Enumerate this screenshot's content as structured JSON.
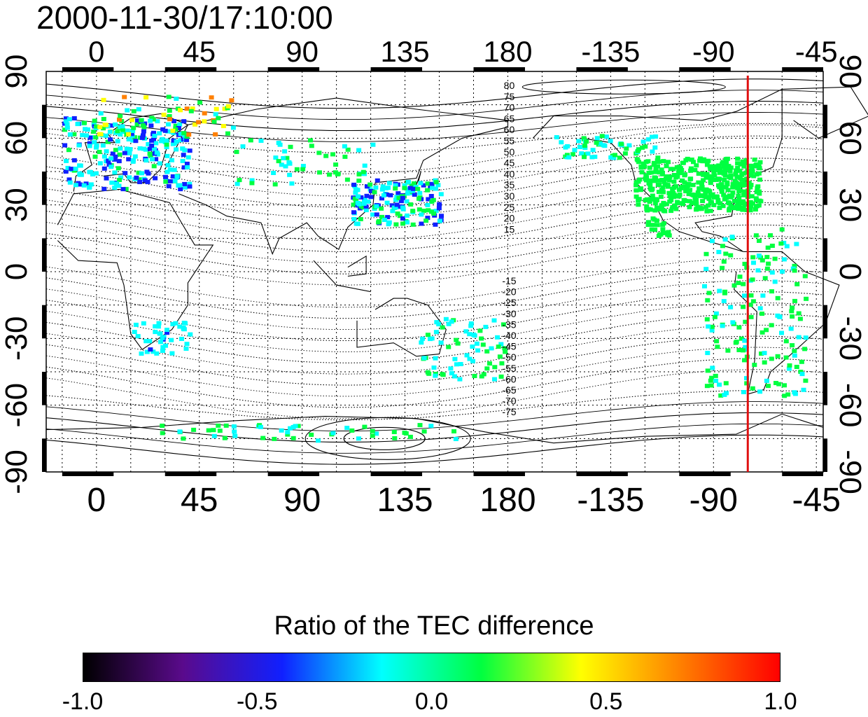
{
  "timestamp": "2000-11-30/17:10:00",
  "map": {
    "projection": "cylindrical equidistant",
    "lon_range_display": [
      -22,
      318
    ],
    "lat_range": [
      -90,
      90
    ],
    "lon_ticks": [
      {
        "value": 0,
        "label": "0"
      },
      {
        "value": 45,
        "label": "45"
      },
      {
        "value": 90,
        "label": "90"
      },
      {
        "value": 135,
        "label": "135"
      },
      {
        "value": 180,
        "label": "180"
      },
      {
        "value": 225,
        "label": "-135"
      },
      {
        "value": 270,
        "label": "-90"
      },
      {
        "value": 315,
        "label": "-45"
      }
    ],
    "lat_ticks": [
      {
        "value": 90,
        "label": "90"
      },
      {
        "value": 60,
        "label": "60"
      },
      {
        "value": 30,
        "label": "30"
      },
      {
        "value": 0,
        "label": "0"
      },
      {
        "value": -30,
        "label": "-30"
      },
      {
        "value": -60,
        "label": "-60"
      },
      {
        "value": -90,
        "label": "-90"
      }
    ],
    "grid": "dotted, every 15 degrees",
    "meridian_line": {
      "lon": -75,
      "color": "#e01010"
    },
    "contour_labels_north": [
      "80",
      "75",
      "70",
      "65",
      "60",
      "55",
      "50",
      "45",
      "40",
      "35",
      "30",
      "25",
      "20",
      "15"
    ],
    "contour_labels_south": [
      "-15",
      "-20",
      "-25",
      "-30",
      "-35",
      "-40",
      "-45",
      "-50",
      "-55",
      "-60",
      "-65",
      "-70",
      "-75"
    ]
  },
  "colorbar": {
    "title": "Ratio of the TEC difference",
    "range": [
      -1.0,
      1.0
    ],
    "tick_labels": [
      "-1.0",
      "-0.5",
      "0.0",
      "0.5",
      "1.0"
    ],
    "colormap": [
      "#000000",
      "#5a0a8c",
      "#1020ff",
      "#00ffff",
      "#00ff40",
      "#ffff00",
      "#ff8000",
      "#ff0000"
    ]
  }
}
